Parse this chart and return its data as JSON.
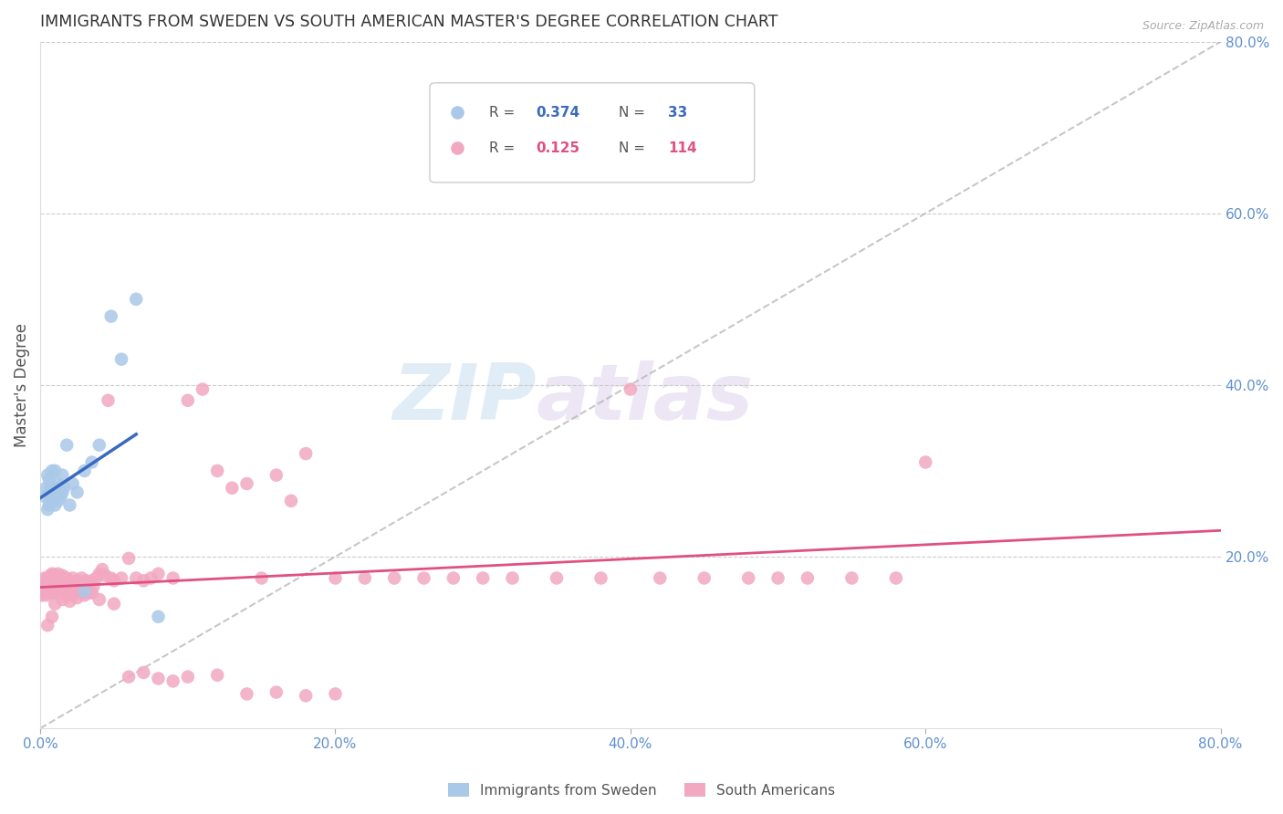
{
  "title": "IMMIGRANTS FROM SWEDEN VS SOUTH AMERICAN MASTER'S DEGREE CORRELATION CHART",
  "source": "Source: ZipAtlas.com",
  "ylabel": "Master's Degree",
  "xlim": [
    0,
    0.8
  ],
  "ylim": [
    0,
    0.8
  ],
  "blue_R": 0.374,
  "blue_N": 33,
  "pink_R": 0.125,
  "pink_N": 114,
  "blue_label": "Immigrants from Sweden",
  "pink_label": "South Americans",
  "blue_color": "#aac8e8",
  "pink_color": "#f2a8c0",
  "blue_line_color": "#3a6abf",
  "pink_line_color": "#e05080",
  "axis_color": "#6090d0",
  "watermark_zip": "ZIP",
  "watermark_atlas": "atlas",
  "blue_scatter_x": [
    0.003,
    0.004,
    0.005,
    0.005,
    0.006,
    0.006,
    0.007,
    0.007,
    0.008,
    0.008,
    0.009,
    0.01,
    0.01,
    0.011,
    0.012,
    0.012,
    0.013,
    0.014,
    0.015,
    0.015,
    0.016,
    0.018,
    0.02,
    0.022,
    0.025,
    0.03,
    0.035,
    0.04,
    0.048,
    0.055,
    0.065,
    0.08,
    0.03
  ],
  "blue_scatter_y": [
    0.27,
    0.28,
    0.255,
    0.295,
    0.26,
    0.29,
    0.265,
    0.28,
    0.27,
    0.3,
    0.275,
    0.26,
    0.3,
    0.275,
    0.265,
    0.285,
    0.28,
    0.27,
    0.275,
    0.295,
    0.28,
    0.33,
    0.26,
    0.285,
    0.275,
    0.3,
    0.31,
    0.33,
    0.48,
    0.43,
    0.5,
    0.13,
    0.16
  ],
  "pink_scatter_x": [
    0.001,
    0.002,
    0.003,
    0.003,
    0.004,
    0.004,
    0.005,
    0.005,
    0.006,
    0.006,
    0.007,
    0.007,
    0.008,
    0.008,
    0.009,
    0.009,
    0.01,
    0.01,
    0.011,
    0.011,
    0.012,
    0.012,
    0.013,
    0.013,
    0.014,
    0.014,
    0.015,
    0.015,
    0.016,
    0.016,
    0.017,
    0.018,
    0.018,
    0.019,
    0.02,
    0.02,
    0.021,
    0.022,
    0.022,
    0.023,
    0.024,
    0.025,
    0.026,
    0.027,
    0.028,
    0.029,
    0.03,
    0.031,
    0.032,
    0.033,
    0.034,
    0.035,
    0.036,
    0.038,
    0.04,
    0.042,
    0.044,
    0.046,
    0.048,
    0.05,
    0.055,
    0.06,
    0.065,
    0.07,
    0.075,
    0.08,
    0.09,
    0.1,
    0.11,
    0.12,
    0.13,
    0.14,
    0.15,
    0.16,
    0.17,
    0.18,
    0.2,
    0.22,
    0.24,
    0.26,
    0.28,
    0.3,
    0.32,
    0.35,
    0.38,
    0.4,
    0.42,
    0.45,
    0.48,
    0.5,
    0.52,
    0.55,
    0.58,
    0.6,
    0.005,
    0.008,
    0.01,
    0.015,
    0.02,
    0.025,
    0.03,
    0.035,
    0.04,
    0.05,
    0.06,
    0.07,
    0.08,
    0.09,
    0.1,
    0.12,
    0.14,
    0.16,
    0.18,
    0.2
  ],
  "pink_scatter_y": [
    0.155,
    0.165,
    0.16,
    0.175,
    0.155,
    0.17,
    0.16,
    0.175,
    0.158,
    0.172,
    0.162,
    0.178,
    0.165,
    0.18,
    0.158,
    0.172,
    0.162,
    0.178,
    0.16,
    0.175,
    0.165,
    0.18,
    0.158,
    0.172,
    0.16,
    0.176,
    0.162,
    0.178,
    0.16,
    0.175,
    0.165,
    0.155,
    0.175,
    0.162,
    0.158,
    0.172,
    0.16,
    0.155,
    0.175,
    0.162,
    0.158,
    0.172,
    0.165,
    0.16,
    0.175,
    0.162,
    0.158,
    0.172,
    0.165,
    0.162,
    0.158,
    0.172,
    0.165,
    0.175,
    0.18,
    0.185,
    0.178,
    0.382,
    0.175,
    0.172,
    0.175,
    0.198,
    0.175,
    0.172,
    0.175,
    0.18,
    0.175,
    0.382,
    0.395,
    0.3,
    0.28,
    0.285,
    0.175,
    0.295,
    0.265,
    0.32,
    0.175,
    0.175,
    0.175,
    0.175,
    0.175,
    0.175,
    0.175,
    0.175,
    0.175,
    0.395,
    0.175,
    0.175,
    0.175,
    0.175,
    0.175,
    0.175,
    0.175,
    0.31,
    0.12,
    0.13,
    0.145,
    0.15,
    0.148,
    0.152,
    0.155,
    0.158,
    0.15,
    0.145,
    0.06,
    0.065,
    0.058,
    0.055,
    0.06,
    0.062,
    0.04,
    0.042,
    0.038,
    0.04
  ]
}
